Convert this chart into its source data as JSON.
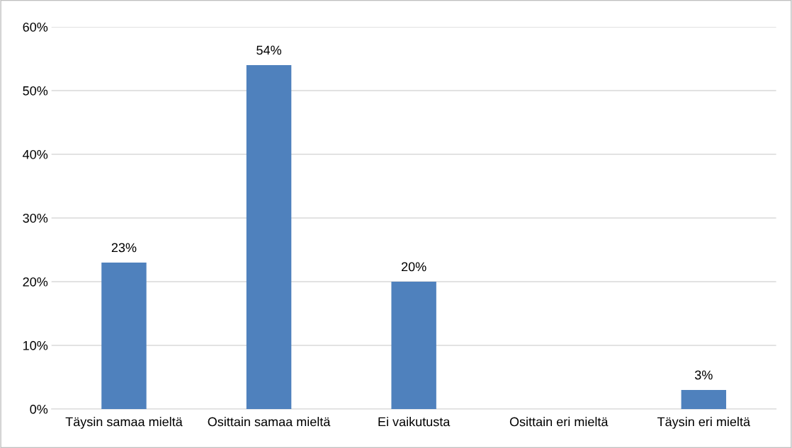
{
  "chart_data": {
    "type": "bar",
    "categories": [
      "Täysin samaa mieltä",
      "Osittain samaa mieltä",
      "Ei vaikutusta",
      "Osittain eri mieltä",
      "Täysin eri mieltä"
    ],
    "values": [
      23,
      54,
      20,
      0,
      3
    ],
    "value_labels": [
      "23%",
      "54%",
      "20%",
      null,
      "3%"
    ],
    "color": "#4f81bd",
    "ylim": [
      0,
      60
    ],
    "yticks": [
      {
        "value": 0,
        "label": "0%"
      },
      {
        "value": 10,
        "label": "10%"
      },
      {
        "value": 20,
        "label": "20%"
      },
      {
        "value": 30,
        "label": "30%"
      },
      {
        "value": 40,
        "label": "40%"
      },
      {
        "value": 50,
        "label": "50%"
      },
      {
        "value": 60,
        "label": "60%"
      }
    ],
    "grid": "y",
    "legend": false
  }
}
